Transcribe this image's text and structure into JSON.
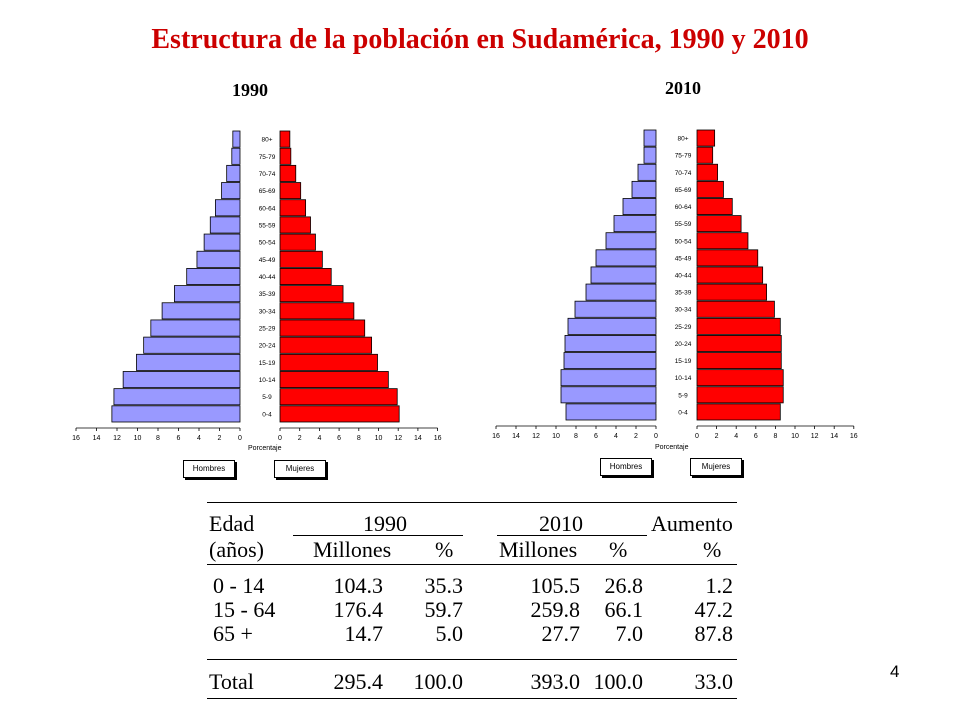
{
  "page": {
    "title": "Estructura de la población en Sudamérica, 1990 y 2010",
    "page_number": "4"
  },
  "colors": {
    "hombres": "#9999ff",
    "mujeres": "#ff0000",
    "title": "#cc0000"
  },
  "chart_data": [
    {
      "type": "bar",
      "title": "1990",
      "xlabel": "Porcentaje",
      "categories": [
        "0-4",
        "5-9",
        "10-14",
        "15-19",
        "20-24",
        "25-29",
        "30-34",
        "35-39",
        "40-44",
        "45-49",
        "50-54",
        "55-59",
        "60-64",
        "65-69",
        "70-74",
        "75-79",
        "80+"
      ],
      "series": [
        {
          "name": "Hombres",
          "values": [
            12.5,
            12.3,
            11.4,
            10.1,
            9.4,
            8.7,
            7.6,
            6.4,
            5.2,
            4.2,
            3.5,
            2.9,
            2.4,
            1.8,
            1.3,
            0.8,
            0.7
          ]
        },
        {
          "name": "Mujeres",
          "values": [
            12.1,
            11.9,
            11.0,
            9.9,
            9.3,
            8.6,
            7.5,
            6.4,
            5.2,
            4.3,
            3.6,
            3.1,
            2.6,
            2.1,
            1.6,
            1.1,
            1.0
          ]
        }
      ],
      "xticks": [
        "16",
        "14",
        "12",
        "10",
        "8",
        "6",
        "4",
        "2",
        "0",
        "0",
        "2",
        "4",
        "6",
        "8",
        "10",
        "12",
        "14",
        "16"
      ],
      "xlim": [
        0,
        16
      ],
      "legend": "bottom"
    },
    {
      "type": "bar",
      "title": "2010",
      "xlabel": "Porcentaje",
      "categories": [
        "0-4",
        "5-9",
        "10-14",
        "15-19",
        "20-24",
        "25-29",
        "30-34",
        "35-39",
        "40-44",
        "45-49",
        "50-54",
        "55-59",
        "60-64",
        "65-69",
        "70-74",
        "75-79",
        "80+"
      ],
      "series": [
        {
          "name": "Hombres",
          "values": [
            9.0,
            9.5,
            9.5,
            9.2,
            9.1,
            8.8,
            8.1,
            7.0,
            6.5,
            6.0,
            5.0,
            4.2,
            3.3,
            2.4,
            1.8,
            1.2,
            1.2
          ]
        },
        {
          "name": "Mujeres",
          "values": [
            8.5,
            8.8,
            8.8,
            8.6,
            8.6,
            8.5,
            7.9,
            7.1,
            6.7,
            6.2,
            5.2,
            4.5,
            3.6,
            2.7,
            2.1,
            1.6,
            1.8
          ]
        }
      ],
      "xticks": [
        "16",
        "14",
        "12",
        "10",
        "8",
        "6",
        "4",
        "2",
        "0",
        "0",
        "2",
        "4",
        "6",
        "8",
        "10",
        "12",
        "14",
        "16"
      ],
      "xlim": [
        0,
        16
      ],
      "legend": "bottom"
    },
    {
      "type": "table",
      "header_row1": [
        "Edad",
        "1990",
        "2010",
        "Aumento"
      ],
      "header_row2": [
        "(años)",
        "Millones",
        "%",
        "Millones",
        "%",
        "%"
      ],
      "rows": [
        [
          "0 - 14",
          "104.3",
          "35.3",
          "105.5",
          "26.8",
          "1.2"
        ],
        [
          "15 - 64",
          "176.4",
          "59.7",
          "259.8",
          "66.1",
          "47.2"
        ],
        [
          "65 +",
          "14.7",
          "5.0",
          "27.7",
          "7.0",
          "87.8"
        ]
      ],
      "total": [
        "Total",
        "295.4",
        "100.0",
        "393.0",
        "100.0",
        "33.0"
      ]
    }
  ]
}
